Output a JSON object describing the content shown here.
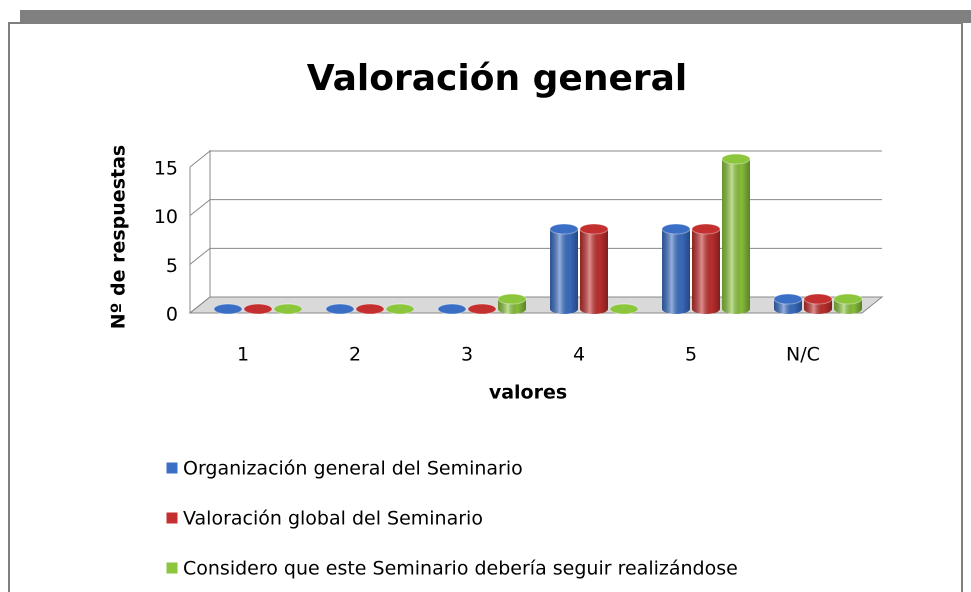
{
  "chart_data": {
    "type": "bar3d",
    "title": "Valoración general",
    "categories": [
      "1",
      "2",
      "3",
      "4",
      "5",
      "N/C"
    ],
    "series": [
      {
        "name": "Organización general del Seminario",
        "color": "#3b6fc6",
        "values": [
          0,
          0,
          0,
          8,
          8,
          1
        ]
      },
      {
        "name": "Valoración global del Seminario",
        "color": "#c3302f",
        "values": [
          0,
          0,
          0,
          8,
          8,
          1
        ]
      },
      {
        "name": "Considero que este Seminario debería seguir realizándose",
        "color": "#8cc63c",
        "values": [
          0,
          0,
          1,
          0,
          15,
          1
        ]
      }
    ],
    "y_label": "Nº de respuestas",
    "x_label": "valores",
    "ylim": [
      0,
      15
    ],
    "yticks": [
      0,
      5,
      10,
      15
    ],
    "grid": true,
    "legend": "bottom"
  }
}
